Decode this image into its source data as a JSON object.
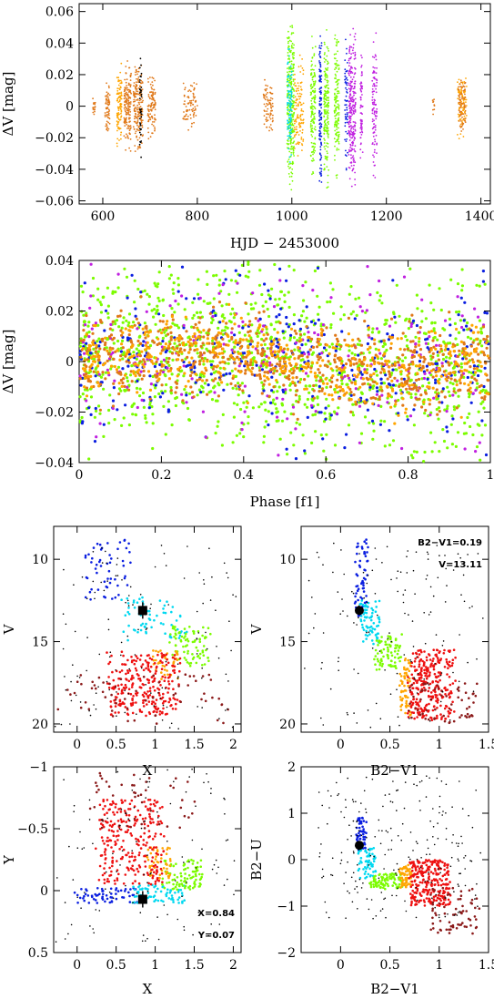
{
  "colors": {
    "orange": "#e07818",
    "amber": "#ffa500",
    "green": "#7cfc00",
    "blue": "#0a1ee0",
    "cyan": "#00d8f0",
    "magenta": "#c020e0",
    "red": "#ee1010",
    "darkred": "#8b1a1a",
    "black": "#000000"
  },
  "chart_data": [
    {
      "id": "lightcurve",
      "type": "scatter",
      "xlabel": "HJD − 2453000",
      "ylabel": "ΔV [mag]",
      "xlim": [
        550,
        1420
      ],
      "ylim": [
        0.065,
        -0.062
      ],
      "xticks": [
        600,
        800,
        1000,
        1200,
        1400
      ],
      "yticks": [
        -0.06,
        -0.04,
        -0.02,
        0,
        0.02,
        0.04,
        0.06
      ],
      "xtick_labels": [
        "600",
        "800",
        "1000",
        "1200",
        "1400"
      ],
      "ytick_labels": [
        "−0.06",
        "−0.04",
        "−0.02",
        "0",
        "0.02",
        "0.04",
        "0.06"
      ],
      "segments": [
        {
          "x": [
            578,
            584
          ],
          "amp": 0.008,
          "color": "orange",
          "n": 20
        },
        {
          "x": [
            605,
            615
          ],
          "amp": 0.02,
          "color": "orange",
          "n": 60
        },
        {
          "x": [
            630,
            640
          ],
          "amp": 0.03,
          "color": "amber",
          "n": 100
        },
        {
          "x": [
            645,
            660
          ],
          "amp": 0.03,
          "color": "orange",
          "n": 150
        },
        {
          "x": [
            665,
            685
          ],
          "amp": 0.032,
          "color": "orange",
          "n": 180
        },
        {
          "x": [
            678,
            682
          ],
          "amp": 0.038,
          "color": "black",
          "n": 40
        },
        {
          "x": [
            695,
            712
          ],
          "amp": 0.022,
          "color": "orange",
          "n": 100
        },
        {
          "x": [
            770,
            800
          ],
          "amp": 0.018,
          "color": "orange",
          "n": 80
        },
        {
          "x": [
            940,
            960
          ],
          "amp": 0.018,
          "color": "orange",
          "n": 80
        },
        {
          "x": [
            990,
            1005
          ],
          "amp": 0.058,
          "color": "green",
          "n": 300
        },
        {
          "x": [
            990,
            1000
          ],
          "amp": 0.04,
          "color": "cyan",
          "n": 100
        },
        {
          "x": [
            1005,
            1025
          ],
          "amp": 0.035,
          "color": "amber",
          "n": 120
        },
        {
          "x": [
            1040,
            1050
          ],
          "amp": 0.05,
          "color": "green",
          "n": 150
        },
        {
          "x": [
            1058,
            1063
          ],
          "amp": 0.055,
          "color": "blue",
          "n": 120
        },
        {
          "x": [
            1068,
            1078
          ],
          "amp": 0.055,
          "color": "green",
          "n": 180
        },
        {
          "x": [
            1090,
            1100
          ],
          "amp": 0.05,
          "color": "green",
          "n": 150
        },
        {
          "x": [
            1112,
            1118
          ],
          "amp": 0.045,
          "color": "blue",
          "n": 60
        },
        {
          "x": [
            1120,
            1135
          ],
          "amp": 0.055,
          "color": "magenta",
          "n": 250
        },
        {
          "x": [
            1145,
            1150
          ],
          "amp": 0.04,
          "color": "magenta",
          "n": 60
        },
        {
          "x": [
            1170,
            1180
          ],
          "amp": 0.05,
          "color": "magenta",
          "n": 100
        },
        {
          "x": [
            1298,
            1302
          ],
          "amp": 0.008,
          "color": "orange",
          "n": 10
        },
        {
          "x": [
            1350,
            1370
          ],
          "amp": 0.022,
          "color": "amber",
          "n": 90
        },
        {
          "x": [
            1352,
            1368
          ],
          "amp": 0.02,
          "color": "orange",
          "n": 80
        }
      ]
    },
    {
      "id": "phase",
      "type": "scatter",
      "xlabel": "Phase [f1]",
      "ylabel": "ΔV [mag]",
      "xlim": [
        0,
        1
      ],
      "ylim": [
        0.04,
        -0.04
      ],
      "xticks": [
        0,
        0.2,
        0.4,
        0.6,
        0.8,
        1
      ],
      "yticks": [
        -0.04,
        -0.02,
        0,
        0.02,
        0.04
      ],
      "xtick_labels": [
        "0",
        "0.2",
        "0.4",
        "0.6",
        "0.8",
        "1"
      ],
      "ytick_labels": [
        "−0.04",
        "−0.02",
        "0",
        "0.02",
        "0.04"
      ],
      "semi_amplitude": 0.004,
      "groups": [
        {
          "color": "green",
          "n": 1200,
          "sigma": 0.018
        },
        {
          "color": "blue",
          "n": 350,
          "sigma": 0.016
        },
        {
          "color": "magenta",
          "n": 220,
          "sigma": 0.016
        },
        {
          "color": "orange",
          "n": 700,
          "sigma": 0.008
        },
        {
          "color": "amber",
          "n": 500,
          "sigma": 0.007
        }
      ]
    },
    {
      "id": "cmd-x-v",
      "type": "scatter",
      "xlabel": "X",
      "ylabel": "V",
      "xlim": [
        -0.3,
        2.1
      ],
      "ylim": [
        8,
        20.5
      ],
      "xticks": [
        0,
        0.5,
        1,
        1.5,
        2
      ],
      "yticks": [
        10,
        15,
        20
      ],
      "xtick_labels": [
        "0",
        "0.5",
        "1",
        "1.5",
        "2"
      ],
      "ytick_labels": [
        "10",
        "15",
        "20"
      ],
      "marker": {
        "x": 0.84,
        "y": 13.11,
        "shape": "square"
      },
      "clouds": [
        {
          "color": "blue",
          "n": 55,
          "x": [
            0.1,
            0.7
          ],
          "y": [
            8.8,
            12.5
          ]
        },
        {
          "color": "cyan",
          "n": 70,
          "x": [
            0.6,
            1.4
          ],
          "y": [
            12.3,
            15.2
          ]
        },
        {
          "color": "green",
          "n": 80,
          "x": [
            1.2,
            1.7
          ],
          "y": [
            14,
            16.5
          ]
        },
        {
          "color": "amber",
          "n": 40,
          "x": [
            0.95,
            1.3
          ],
          "y": [
            15.5,
            17.3
          ]
        },
        {
          "color": "red",
          "n": 260,
          "x": [
            0.4,
            1.3
          ],
          "y": [
            15.6,
            19.5
          ]
        },
        {
          "color": "darkred",
          "n": 60,
          "x": [
            -0.2,
            1.9
          ],
          "y": [
            17,
            20
          ]
        },
        {
          "color": "black",
          "n": 140,
          "x": [
            -0.3,
            2.0
          ],
          "y": [
            9,
            20.3
          ]
        }
      ]
    },
    {
      "id": "cmd-bv-v",
      "type": "scatter",
      "xlabel": "B2−V1",
      "ylabel": "V",
      "xlim": [
        -0.4,
        1.5
      ],
      "ylim": [
        8,
        20.5
      ],
      "xticks": [
        0,
        0.5,
        1,
        1.5
      ],
      "yticks": [
        10,
        15,
        20
      ],
      "xtick_labels": [
        "0",
        "0.5",
        "1",
        "1.5"
      ],
      "ytick_labels": [
        "10",
        "15",
        "20"
      ],
      "marker": {
        "x": 0.19,
        "y": 13.11,
        "shape": "circle"
      },
      "annotations": [
        "B2−V1=0.19",
        "V=13.11"
      ],
      "clouds": [
        {
          "color": "blue",
          "n": 60,
          "x": [
            0.15,
            0.28
          ],
          "y": [
            8.8,
            13.5
          ]
        },
        {
          "color": "cyan",
          "n": 70,
          "x": [
            0.2,
            0.4
          ],
          "y": [
            12.5,
            15.2
          ]
        },
        {
          "color": "green",
          "n": 80,
          "x": [
            0.35,
            0.62
          ],
          "y": [
            14.5,
            16.8
          ]
        },
        {
          "color": "amber",
          "n": 60,
          "x": [
            0.6,
            0.72
          ],
          "y": [
            16,
            19.5
          ]
        },
        {
          "color": "red",
          "n": 280,
          "x": [
            0.7,
            1.15
          ],
          "y": [
            15.5,
            19.8
          ]
        },
        {
          "color": "darkred",
          "n": 60,
          "x": [
            0.7,
            1.4
          ],
          "y": [
            17.5,
            20
          ]
        },
        {
          "color": "black",
          "n": 150,
          "x": [
            -0.3,
            1.45
          ],
          "y": [
            9,
            20.3
          ]
        }
      ]
    },
    {
      "id": "cc-x-y",
      "type": "scatter",
      "xlabel": "X",
      "ylabel": "Y",
      "xlim": [
        -0.3,
        2.1
      ],
      "ylim": [
        -1.0,
        0.5
      ],
      "xticks": [
        0,
        0.5,
        1,
        1.5,
        2
      ],
      "yticks": [
        -1,
        -0.5,
        0,
        0.5
      ],
      "xtick_labels": [
        "0",
        "0.5",
        "1",
        "1.5",
        "2"
      ],
      "ytick_labels": [
        "−1",
        "−0.5",
        "0",
        "0.5"
      ],
      "marker": {
        "x": 0.84,
        "y": 0.07,
        "shape": "square"
      },
      "annotations": [
        "X=0.84",
        "Y=0.07"
      ],
      "clouds": [
        {
          "color": "blue",
          "n": 60,
          "x": [
            0.0,
            0.75
          ],
          "y": [
            -0.02,
            0.1
          ]
        },
        {
          "color": "cyan",
          "n": 70,
          "x": [
            0.7,
            1.4
          ],
          "y": [
            -0.05,
            0.1
          ]
        },
        {
          "color": "green",
          "n": 90,
          "x": [
            1.1,
            1.6
          ],
          "y": [
            -0.25,
            0.0
          ]
        },
        {
          "color": "amber",
          "n": 50,
          "x": [
            0.9,
            1.2
          ],
          "y": [
            -0.35,
            -0.1
          ]
        },
        {
          "color": "red",
          "n": 260,
          "x": [
            0.3,
            1.1
          ],
          "y": [
            -0.75,
            -0.05
          ]
        },
        {
          "color": "darkred",
          "n": 50,
          "x": [
            0.2,
            1.5
          ],
          "y": [
            -0.95,
            -0.5
          ]
        },
        {
          "color": "black",
          "n": 120,
          "x": [
            -0.3,
            2.0
          ],
          "y": [
            -1.0,
            0.45
          ]
        }
      ]
    },
    {
      "id": "cc-bv-bu",
      "type": "scatter",
      "xlabel": "B2−V1",
      "ylabel": "B2−U",
      "xlim": [
        -0.4,
        1.5
      ],
      "ylim": [
        2,
        -2
      ],
      "xticks": [
        0,
        0.5,
        1,
        1.5
      ],
      "yticks": [
        -2,
        -1,
        0,
        1,
        2
      ],
      "xtick_labels": [
        "0",
        "0.5",
        "1",
        "1.5"
      ],
      "ytick_labels": [
        "−2",
        "−1",
        "0",
        "1",
        "2"
      ],
      "marker": {
        "x": 0.19,
        "y": 0.31,
        "shape": "circle"
      },
      "clouds": [
        {
          "color": "blue",
          "n": 55,
          "x": [
            0.16,
            0.26
          ],
          "y": [
            0.2,
            0.9
          ]
        },
        {
          "color": "cyan",
          "n": 60,
          "x": [
            0.18,
            0.36
          ],
          "y": [
            -0.4,
            0.3
          ]
        },
        {
          "color": "green",
          "n": 90,
          "x": [
            0.3,
            0.62
          ],
          "y": [
            -0.65,
            -0.3
          ]
        },
        {
          "color": "amber",
          "n": 60,
          "x": [
            0.6,
            0.72
          ],
          "y": [
            -0.6,
            -0.1
          ]
        },
        {
          "color": "red",
          "n": 260,
          "x": [
            0.7,
            1.1
          ],
          "y": [
            -1.0,
            0.0
          ]
        },
        {
          "color": "darkred",
          "n": 70,
          "x": [
            0.9,
            1.4
          ],
          "y": [
            -1.6,
            -0.6
          ]
        },
        {
          "color": "black",
          "n": 220,
          "x": [
            -0.2,
            1.35
          ],
          "y": [
            -1.3,
            1.8
          ]
        }
      ]
    }
  ]
}
